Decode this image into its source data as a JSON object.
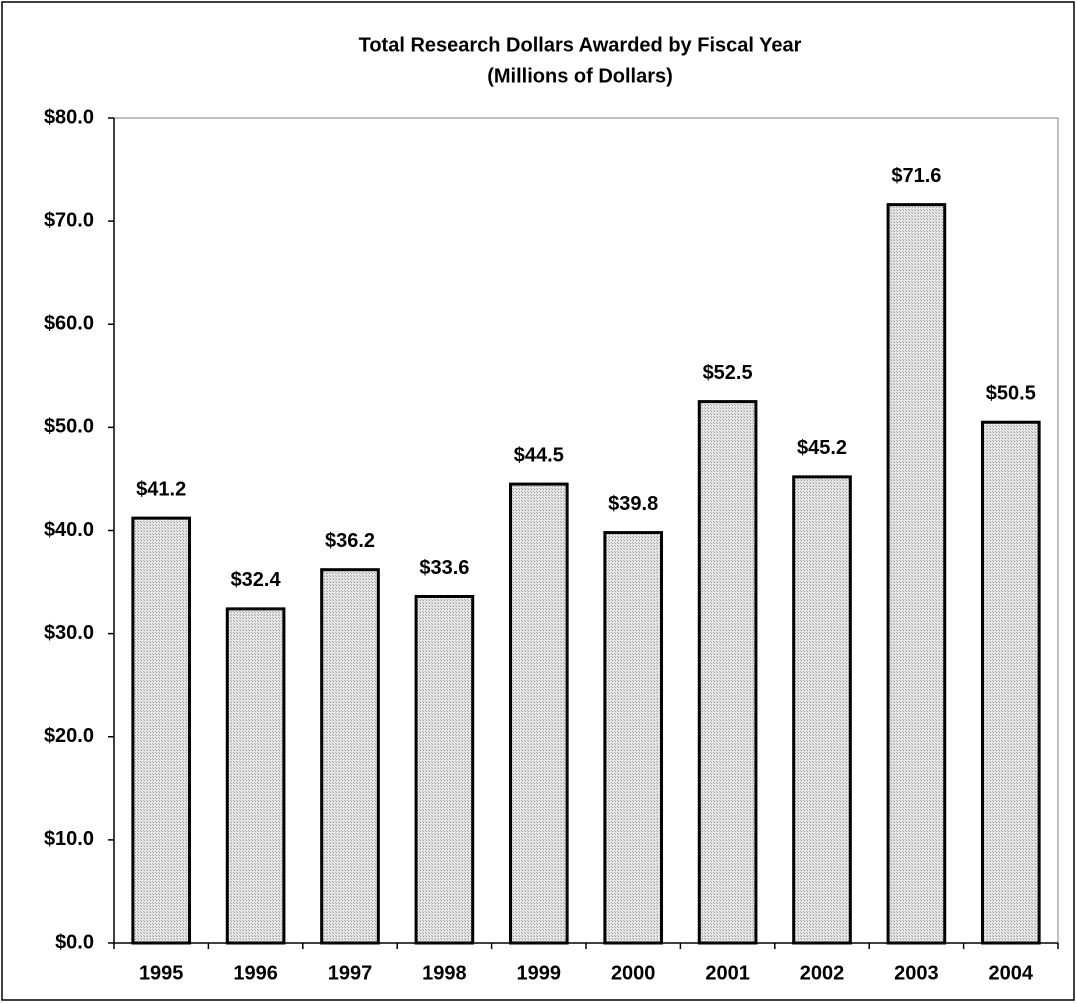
{
  "chart_data": {
    "type": "bar",
    "title": "Total Research Dollars Awarded by Fiscal Year",
    "subtitle": "(Millions of Dollars)",
    "categories": [
      "1995",
      "1996",
      "1997",
      "1998",
      "1999",
      "2000",
      "2001",
      "2002",
      "2003",
      "2004"
    ],
    "values": [
      41.2,
      32.4,
      36.2,
      33.6,
      44.5,
      39.8,
      52.5,
      45.2,
      71.6,
      50.5
    ],
    "value_labels": [
      "$41.2",
      "$32.4",
      "$36.2",
      "$33.6",
      "$44.5",
      "$39.8",
      "$52.5",
      "$45.2",
      "$71.6",
      "$50.5"
    ],
    "color": "#d4d4d4",
    "ylim": [
      0,
      80
    ],
    "yticks": [
      {
        "value": 0,
        "label": "$0.0"
      },
      {
        "value": 10,
        "label": "$10.0"
      },
      {
        "value": 20,
        "label": "$20.0"
      },
      {
        "value": 30,
        "label": "$30.0"
      },
      {
        "value": 40,
        "label": "$40.0"
      },
      {
        "value": 50,
        "label": "$50.0"
      },
      {
        "value": 60,
        "label": "$60.0"
      },
      {
        "value": 70,
        "label": "$70.0"
      },
      {
        "value": 80,
        "label": "$80.0"
      }
    ],
    "grid": false
  }
}
